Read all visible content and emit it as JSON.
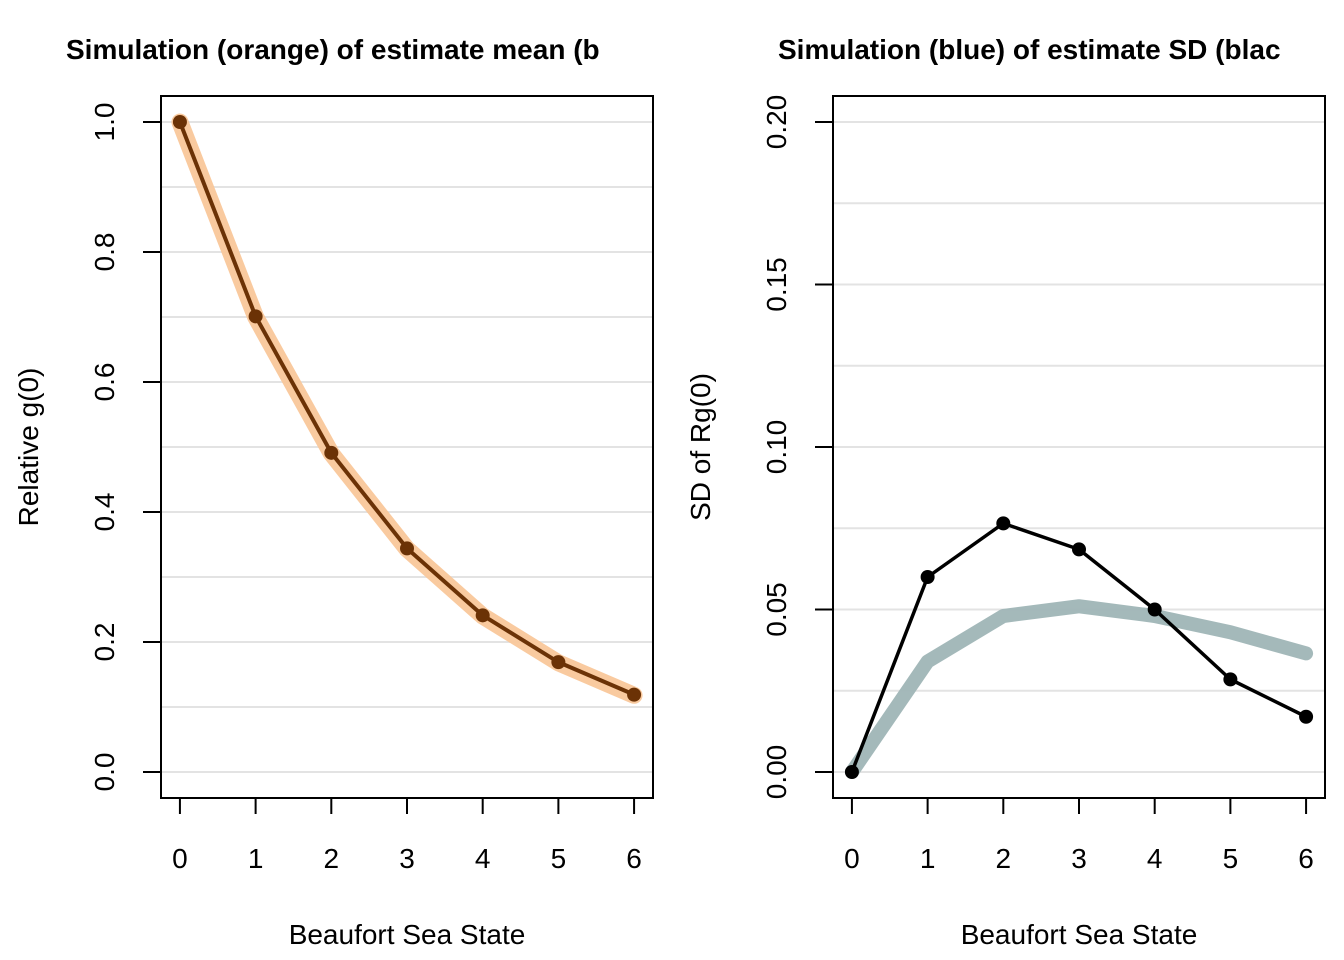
{
  "chart_data": [
    {
      "type": "line",
      "title": "Simulation (orange) of estimate mean (b",
      "xlabel": "Beaufort Sea State",
      "ylabel": "Relative g(0)",
      "x": [
        0,
        1,
        2,
        3,
        4,
        5,
        6
      ],
      "xticks": [
        "0",
        "1",
        "2",
        "3",
        "4",
        "5",
        "6"
      ],
      "yticks": [
        "0.0",
        "0.2",
        "0.4",
        "0.6",
        "0.8",
        "1.0"
      ],
      "xlim": [
        -0.25,
        6.25
      ],
      "ylim": [
        -0.04,
        1.04
      ],
      "grid": true,
      "series": [
        {
          "role": "simulation",
          "color": "#f9c79a",
          "values": [
            1.0,
            0.7,
            0.49,
            0.343,
            0.24,
            0.168,
            0.118
          ]
        },
        {
          "role": "estimate",
          "color": "#6b3206",
          "values": [
            1.0,
            0.701,
            0.491,
            0.344,
            0.241,
            0.169,
            0.119
          ]
        }
      ]
    },
    {
      "type": "line",
      "title": "Simulation (blue) of estimate SD (blac",
      "xlabel": "Beaufort Sea State",
      "ylabel": "SD of Rg(0)",
      "x": [
        0,
        1,
        2,
        3,
        4,
        5,
        6
      ],
      "xticks": [
        "0",
        "1",
        "2",
        "3",
        "4",
        "5",
        "6"
      ],
      "yticks": [
        "0.00",
        "0.05",
        "0.10",
        "0.15",
        "0.20"
      ],
      "xlim": [
        -0.25,
        6.25
      ],
      "ylim": [
        -0.008,
        0.208
      ],
      "grid": true,
      "series": [
        {
          "role": "simulation",
          "color": "#9fb5b6",
          "values": [
            0.0,
            0.034,
            0.048,
            0.051,
            0.048,
            0.043,
            0.0365
          ]
        },
        {
          "role": "estimate",
          "color": "#000000",
          "values": [
            0.0,
            0.06,
            0.0765,
            0.0685,
            0.05,
            0.0285,
            0.017
          ]
        }
      ]
    }
  ]
}
